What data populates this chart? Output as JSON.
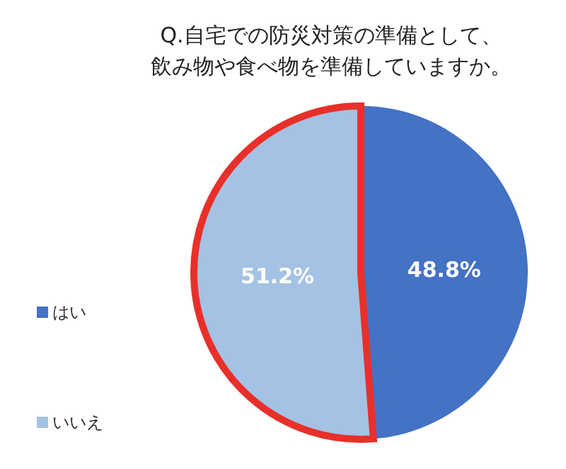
{
  "chart_data": {
    "type": "pie",
    "title": "Q.自宅での防災対策の準備として、飲み物や食べ物を準備していますか。",
    "categories": [
      "はい",
      "いいえ"
    ],
    "values": [
      48.8,
      51.2
    ],
    "colors": [
      "#4472c4",
      "#a4c2e4"
    ],
    "value_labels": [
      "48.8%",
      "51.2%"
    ],
    "legend": "left"
  }
}
